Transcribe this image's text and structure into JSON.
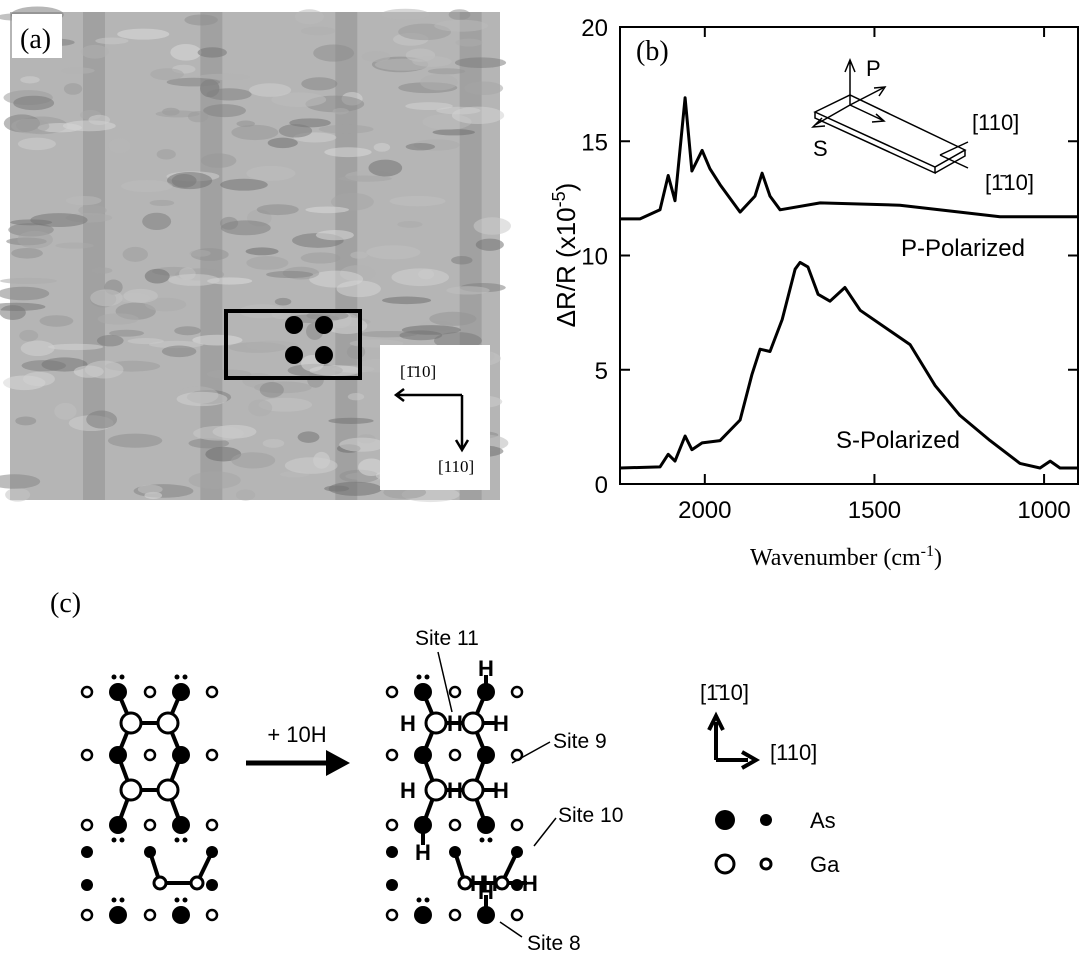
{
  "panel_a": {
    "label": "(a)",
    "direction_left": "[1̄10]",
    "direction_down": "[110]"
  },
  "chart_data": {
    "type": "line",
    "panel_label": "(b)",
    "x_label": "Wavenumber (cm",
    "x_label_exponent": "-1",
    "x_label_end": ")",
    "y_label": "ΔR/R (x10",
    "y_label_exponent": "-5",
    "y_label_end": ")",
    "xlim": [
      2250,
      900
    ],
    "xticks": [
      2000,
      1500,
      1000
    ],
    "ylim": [
      0,
      20
    ],
    "yticks": [
      0,
      5,
      10,
      15,
      20
    ],
    "series": [
      {
        "name": "P-Polarized",
        "color": "#000000",
        "x": [
          2250,
          2191,
          2132,
          2108,
          2088,
          2058,
          2038,
          2008,
          1985,
          1955,
          1896,
          1852,
          1831,
          1808,
          1778,
          1660,
          1425,
          1248,
          1130,
          1012,
          900
        ],
        "values": [
          11.6,
          11.6,
          12.0,
          13.5,
          12.4,
          16.9,
          13.7,
          14.6,
          13.8,
          13.1,
          11.9,
          12.6,
          13.6,
          12.6,
          12.0,
          12.3,
          12.2,
          11.9,
          11.7,
          11.7,
          11.7
        ]
      },
      {
        "name": "S-Polarized",
        "color": "#000000",
        "x": [
          2250,
          2132,
          2108,
          2088,
          2058,
          2038,
          2008,
          1955,
          1896,
          1861,
          1837,
          1808,
          1772,
          1734,
          1719,
          1696,
          1666,
          1631,
          1587,
          1542,
          1454,
          1395,
          1321,
          1248,
          1159,
          1071,
          1012,
          982,
          953,
          900
        ],
        "values": [
          0.7,
          0.75,
          1.3,
          1.0,
          2.1,
          1.5,
          1.8,
          1.9,
          2.8,
          4.8,
          5.9,
          5.8,
          7.2,
          9.4,
          9.7,
          9.5,
          8.3,
          8.0,
          8.6,
          7.6,
          6.7,
          6.1,
          4.3,
          3.0,
          1.9,
          0.9,
          0.7,
          1.0,
          0.7,
          0.7
        ]
      }
    ],
    "inset": {
      "p": "P",
      "s": "S",
      "axis_110": "[110]",
      "axis_1bar10": "[1̄10]"
    }
  },
  "panel_c": {
    "label": "(c)",
    "reaction": "+ 10H",
    "hydrogen": "H",
    "sites": [
      "Site 11",
      "Site 9",
      "Site 10",
      "Site 8"
    ],
    "axis_up": "[1̄10]",
    "axis_right": "[110]",
    "legend": [
      "As",
      "Ga"
    ]
  }
}
